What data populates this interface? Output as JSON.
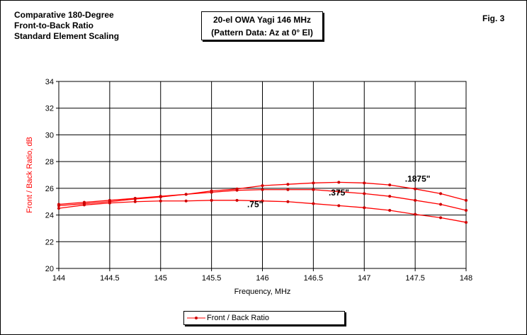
{
  "header": {
    "left_title": [
      "Comparative 180-Degree",
      "Front-to-Back Ratio",
      "Standard Element Scaling"
    ],
    "fig": "Fig. 3"
  },
  "chart_data": {
    "type": "line",
    "title": [
      "20-el OWA Yagi 146 MHz",
      "(Pattern Data: Az at 0° El)"
    ],
    "xlabel": "Frequency, MHz",
    "ylabel": "Front / Back Ratio, dB",
    "xlim": [
      144,
      148
    ],
    "ylim": [
      20,
      34
    ],
    "xticks": [
      "144",
      "144.5",
      "145",
      "145.5",
      "146",
      "146.5",
      "147",
      "147.5",
      "148"
    ],
    "yticks": [
      "20",
      "22",
      "24",
      "26",
      "28",
      "30",
      "32",
      "34"
    ],
    "grid": true,
    "legend": "bottom",
    "legend_label": "Front / Back Ratio",
    "color": "#ff0000",
    "x": [
      144,
      144.25,
      144.5,
      144.75,
      145,
      145.25,
      145.5,
      145.75,
      146,
      146.25,
      146.5,
      146.75,
      147,
      147.25,
      147.5,
      147.75,
      148
    ],
    "series": [
      {
        "name": ".1875\"",
        "values": [
          24.8,
          24.95,
          25.1,
          25.25,
          25.4,
          25.55,
          25.8,
          25.95,
          26.2,
          26.3,
          26.4,
          26.45,
          26.4,
          26.25,
          25.95,
          25.6,
          25.1
        ],
        "label_at": [
          147.4,
          26.5
        ]
      },
      {
        "name": ".375\"",
        "values": [
          24.7,
          24.85,
          25.0,
          25.2,
          25.35,
          25.55,
          25.7,
          25.85,
          25.9,
          25.9,
          25.9,
          25.75,
          25.6,
          25.4,
          25.1,
          24.8,
          24.35
        ],
        "label_at": [
          146.65,
          25.45
        ]
      },
      {
        "name": ".75\"",
        "values": [
          24.5,
          24.75,
          24.9,
          25.0,
          25.05,
          25.05,
          25.1,
          25.1,
          25.05,
          25.0,
          24.85,
          24.7,
          24.55,
          24.35,
          24.05,
          23.8,
          23.45
        ],
        "label_at": [
          145.85,
          24.6
        ]
      }
    ]
  }
}
